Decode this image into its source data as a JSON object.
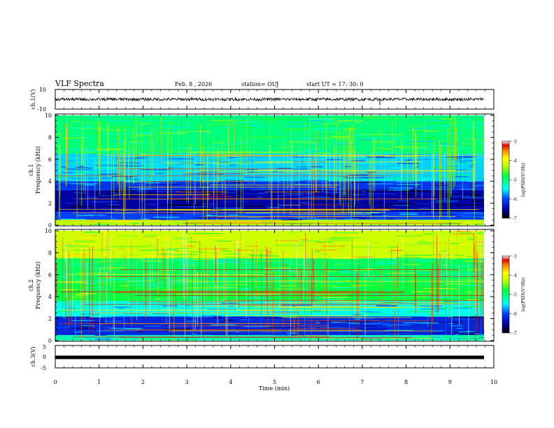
{
  "header": {
    "title": "VLF Spectra",
    "date": "Feb. 8 , 2026",
    "station": "station= OUJ",
    "start": "start UT = 17: 30: 0"
  },
  "chart_data": [
    {
      "type": "line",
      "panel": "ch1-waveform",
      "ylabel": "ch.1(V)",
      "ylim": [
        -10,
        10
      ],
      "yticks": [
        "10",
        "-10"
      ],
      "xlim": [
        0,
        10
      ],
      "series": [
        {
          "values_level": 0,
          "amplitude_approx": 1.5
        }
      ]
    },
    {
      "type": "heatmap",
      "panel": "ch1-spectrogram",
      "ylabel": [
        "ch.1",
        "Frequency (kHz)"
      ],
      "ylim": [
        0,
        10
      ],
      "yticks": [
        "0",
        "2",
        "4",
        "6",
        "8",
        "10"
      ],
      "xlim": [
        0,
        10
      ],
      "colorbar": {
        "label": "log(PSD)(V²/Hz)",
        "range": [
          -7,
          -3
        ],
        "ticks": [
          "-3",
          "-4",
          "-5",
          "-6",
          "-7"
        ]
      },
      "band_levels": [
        {
          "f_low": 0,
          "f_high": 0.5,
          "level": -4.3
        },
        {
          "f_low": 0.5,
          "f_high": 1.2,
          "level": -6.0
        },
        {
          "f_low": 1.2,
          "f_high": 3.2,
          "level": -6.5
        },
        {
          "f_low": 3.2,
          "f_high": 4.0,
          "level": -6.1
        },
        {
          "f_low": 4.0,
          "f_high": 6.5,
          "level": -5.6
        },
        {
          "f_low": 6.5,
          "f_high": 10,
          "level": -5.0
        }
      ]
    },
    {
      "type": "heatmap",
      "panel": "ch2-spectrogram",
      "ylabel": [
        "ch.2",
        "Frequency (kHz)"
      ],
      "ylim": [
        0,
        10
      ],
      "yticks": [
        "0",
        "2",
        "4",
        "6",
        "8",
        "10"
      ],
      "xlim": [
        0,
        10
      ],
      "colorbar": {
        "label": "log(PSD)(V²/Hz)",
        "range": [
          -7,
          -3
        ],
        "ticks": [
          "-3",
          "-4",
          "-5",
          "-6",
          "-7"
        ]
      },
      "band_levels": [
        {
          "f_low": 0,
          "f_high": 0.5,
          "level": -5.2
        },
        {
          "f_low": 0.5,
          "f_high": 2.2,
          "level": -6.2
        },
        {
          "f_low": 2.2,
          "f_high": 3.6,
          "level": -5.4
        },
        {
          "f_low": 3.6,
          "f_high": 5.3,
          "level": -4.8
        },
        {
          "f_low": 5.3,
          "f_high": 7.5,
          "level": -4.9
        },
        {
          "f_low": 7.5,
          "f_high": 10,
          "level": -4.2
        }
      ]
    },
    {
      "type": "line",
      "panel": "ch3-waveform",
      "ylabel": "ch.3(V)",
      "ylim": [
        -5,
        5
      ],
      "yticks": [
        "5",
        "0",
        "-5"
      ],
      "xlim": [
        0,
        10
      ],
      "series": [
        {
          "values_level": -0.3
        }
      ]
    }
  ],
  "xaxis": {
    "label": "Time (min)",
    "ticks": [
      "0",
      "1",
      "2",
      "3",
      "4",
      "5",
      "6",
      "7",
      "8",
      "9",
      "10"
    ]
  }
}
